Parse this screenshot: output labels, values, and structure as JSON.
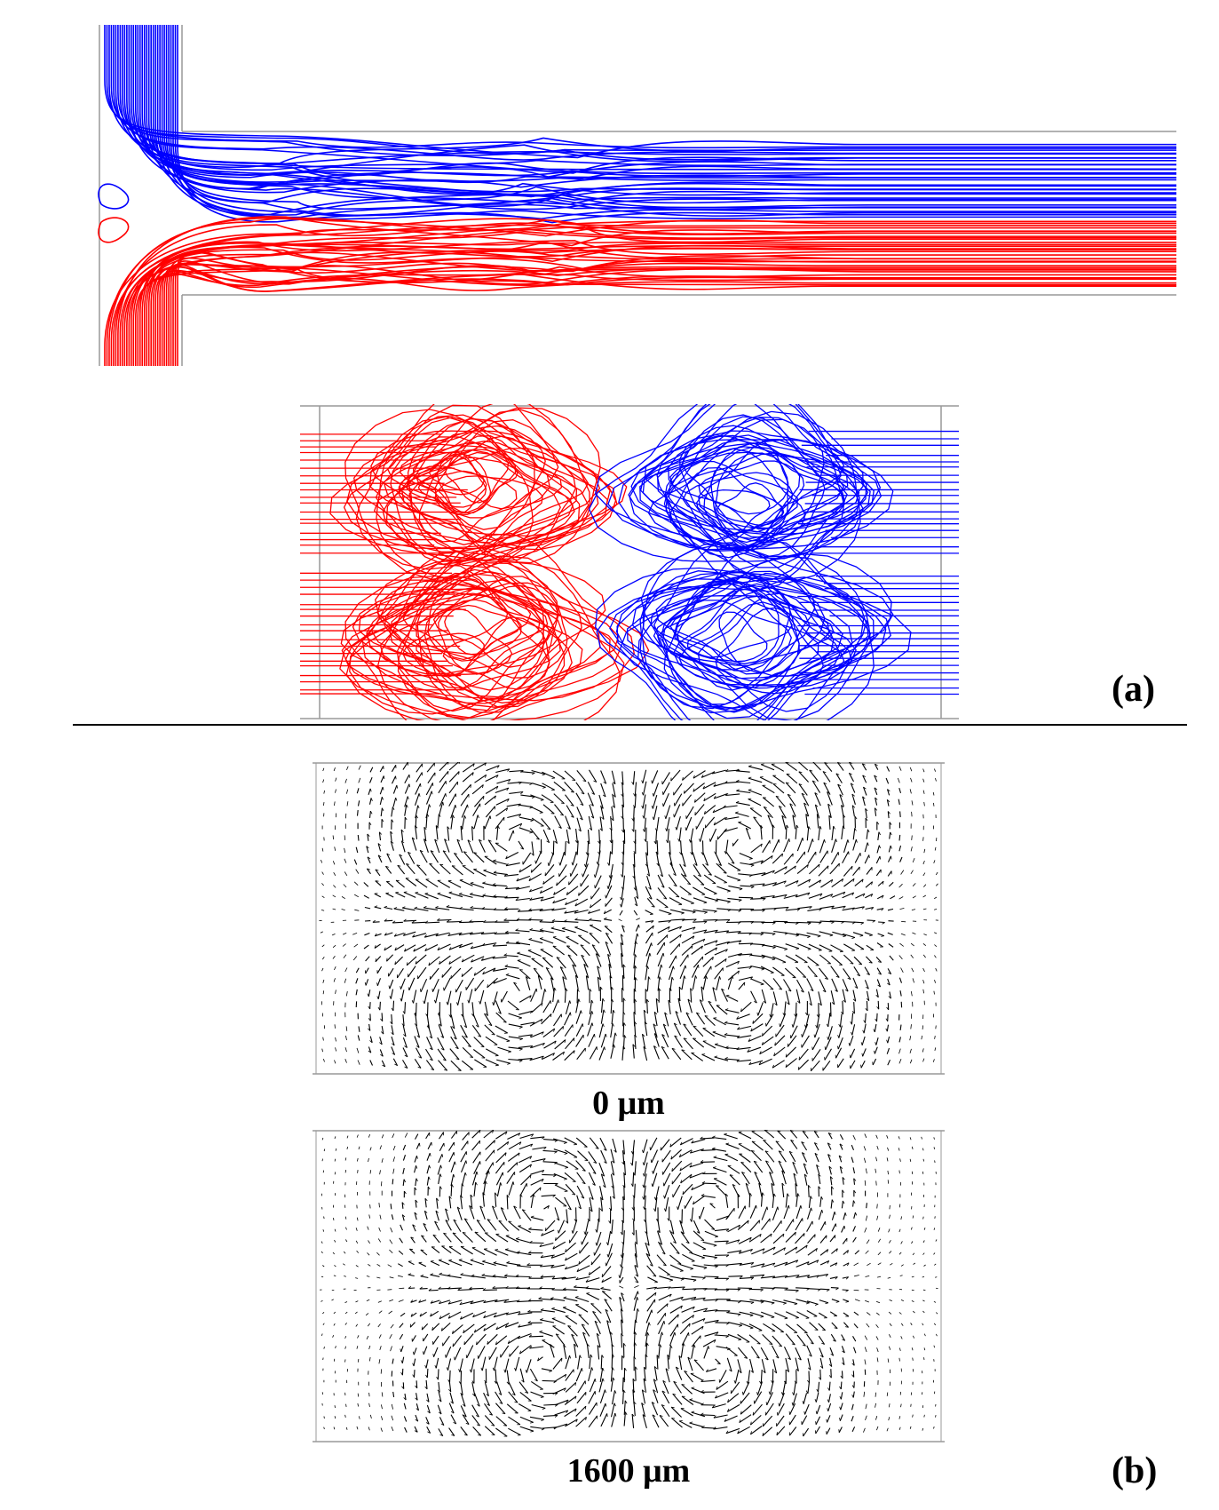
{
  "colors": {
    "stream_top": "#0000ff",
    "stream_bottom": "#ff0000",
    "wall": "#999999",
    "vector": "#000000",
    "divider": "#000000"
  },
  "panel_a": {
    "label": "(a)"
  },
  "panel_b": {
    "label": "(b)",
    "slice_1_caption": "0 μm",
    "slice_2_caption": "1600 μm"
  }
}
